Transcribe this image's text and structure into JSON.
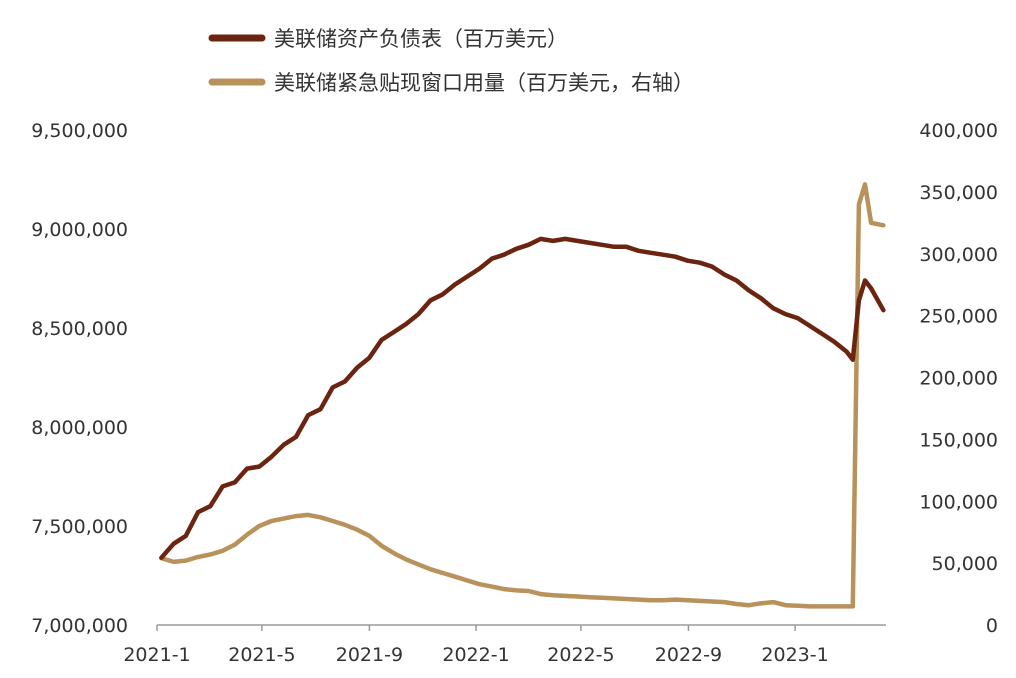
{
  "chart_data": {
    "type": "line",
    "series": [
      {
        "name": "美联储资产负债表（百万美元）",
        "axis": "left",
        "color": "#6b2410",
        "x": [
          "2021-01-06",
          "2021-01-20",
          "2021-02-03",
          "2021-02-17",
          "2021-03-03",
          "2021-03-17",
          "2021-03-31",
          "2021-04-14",
          "2021-04-28",
          "2021-05-12",
          "2021-05-26",
          "2021-06-09",
          "2021-06-23",
          "2021-07-07",
          "2021-07-21",
          "2021-08-04",
          "2021-08-18",
          "2021-09-01",
          "2021-09-15",
          "2021-09-29",
          "2021-10-13",
          "2021-10-27",
          "2021-11-10",
          "2021-11-24",
          "2021-12-08",
          "2021-12-22",
          "2022-01-05",
          "2022-01-19",
          "2022-02-02",
          "2022-02-16",
          "2022-03-02",
          "2022-03-16",
          "2022-03-30",
          "2022-04-13",
          "2022-04-27",
          "2022-05-11",
          "2022-05-25",
          "2022-06-08",
          "2022-06-22",
          "2022-07-06",
          "2022-07-20",
          "2022-08-03",
          "2022-08-17",
          "2022-08-31",
          "2022-09-14",
          "2022-09-28",
          "2022-10-12",
          "2022-10-26",
          "2022-11-09",
          "2022-11-23",
          "2022-12-07",
          "2022-12-21",
          "2023-01-04",
          "2023-01-18",
          "2023-02-01",
          "2023-02-15",
          "2023-03-01",
          "2023-03-08",
          "2023-03-15",
          "2023-03-22",
          "2023-03-29",
          "2023-04-12"
        ],
        "values": [
          7340000,
          7410000,
          7450000,
          7570000,
          7600000,
          7700000,
          7720000,
          7790000,
          7800000,
          7850000,
          7910000,
          7950000,
          8060000,
          8090000,
          8200000,
          8230000,
          8300000,
          8350000,
          8440000,
          8480000,
          8520000,
          8570000,
          8640000,
          8670000,
          8720000,
          8760000,
          8800000,
          8850000,
          8870000,
          8900000,
          8920000,
          8950000,
          8940000,
          8950000,
          8940000,
          8930000,
          8920000,
          8910000,
          8910000,
          8890000,
          8880000,
          8870000,
          8860000,
          8840000,
          8830000,
          8810000,
          8770000,
          8740000,
          8690000,
          8650000,
          8600000,
          8570000,
          8550000,
          8510000,
          8470000,
          8430000,
          8380000,
          8340000,
          8640000,
          8740000,
          8700000,
          8590000
        ]
      },
      {
        "name": "美联储紧急贴现窗口用量（百万美元，右轴）",
        "axis": "right",
        "color": "#b8925a",
        "x": [
          "2021-01-06",
          "2021-01-20",
          "2021-02-03",
          "2021-02-17",
          "2021-03-03",
          "2021-03-17",
          "2021-03-31",
          "2021-04-14",
          "2021-04-28",
          "2021-05-12",
          "2021-05-26",
          "2021-06-09",
          "2021-06-23",
          "2021-07-07",
          "2021-07-21",
          "2021-08-04",
          "2021-08-18",
          "2021-09-01",
          "2021-09-15",
          "2021-09-29",
          "2021-10-13",
          "2021-10-27",
          "2021-11-10",
          "2021-11-24",
          "2021-12-08",
          "2021-12-22",
          "2022-01-05",
          "2022-01-19",
          "2022-02-02",
          "2022-02-16",
          "2022-03-02",
          "2022-03-16",
          "2022-03-30",
          "2022-04-13",
          "2022-04-27",
          "2022-05-11",
          "2022-05-25",
          "2022-06-08",
          "2022-06-22",
          "2022-07-06",
          "2022-07-20",
          "2022-08-03",
          "2022-08-17",
          "2022-08-31",
          "2022-09-14",
          "2022-09-28",
          "2022-10-12",
          "2022-10-26",
          "2022-11-09",
          "2022-11-23",
          "2022-12-07",
          "2022-12-21",
          "2023-01-04",
          "2023-01-18",
          "2023-02-01",
          "2023-02-15",
          "2023-03-01",
          "2023-03-08",
          "2023-03-15",
          "2023-03-22",
          "2023-03-29",
          "2023-04-12"
        ],
        "values": [
          54000,
          51000,
          52000,
          55000,
          57000,
          60000,
          65000,
          73000,
          80000,
          84000,
          86000,
          88000,
          89000,
          87000,
          84000,
          81000,
          77000,
          72000,
          64000,
          58000,
          53000,
          49000,
          45000,
          42000,
          39000,
          36000,
          33000,
          31000,
          29000,
          28000,
          27500,
          25000,
          24000,
          23500,
          23000,
          22500,
          22000,
          21500,
          21000,
          20500,
          20000,
          20000,
          20500,
          20000,
          19500,
          19000,
          18500,
          17000,
          16000,
          17500,
          18500,
          16000,
          15500,
          15000,
          15000,
          15000,
          15000,
          15000,
          340000,
          356000,
          325000,
          323000
        ]
      }
    ],
    "xaxis": {
      "range": [
        "2021-01-01",
        "2023-04-15"
      ],
      "ticks": [
        "2021-1",
        "2021-5",
        "2021-9",
        "2022-1",
        "2022-5",
        "2022-9",
        "2023-1"
      ],
      "tick_dates": [
        "2021-01-01",
        "2021-05-01",
        "2021-09-01",
        "2022-01-01",
        "2022-05-01",
        "2022-09-01",
        "2023-01-01"
      ]
    },
    "yaxis_left": {
      "range": [
        7000000,
        9500000
      ],
      "ticks": [
        "7,000,000",
        "7,500,000",
        "8,000,000",
        "8,500,000",
        "9,000,000",
        "9,500,000"
      ],
      "tick_values": [
        7000000,
        7500000,
        8000000,
        8500000,
        9000000,
        9500000
      ]
    },
    "yaxis_right": {
      "range": [
        0,
        400000
      ],
      "ticks": [
        "0",
        "50,000",
        "100,000",
        "150,000",
        "200,000",
        "250,000",
        "300,000",
        "350,000",
        "400,000"
      ],
      "tick_values": [
        0,
        50000,
        100000,
        150000,
        200000,
        250000,
        300000,
        350000,
        400000
      ]
    },
    "legend_position": "top",
    "grid": false
  }
}
